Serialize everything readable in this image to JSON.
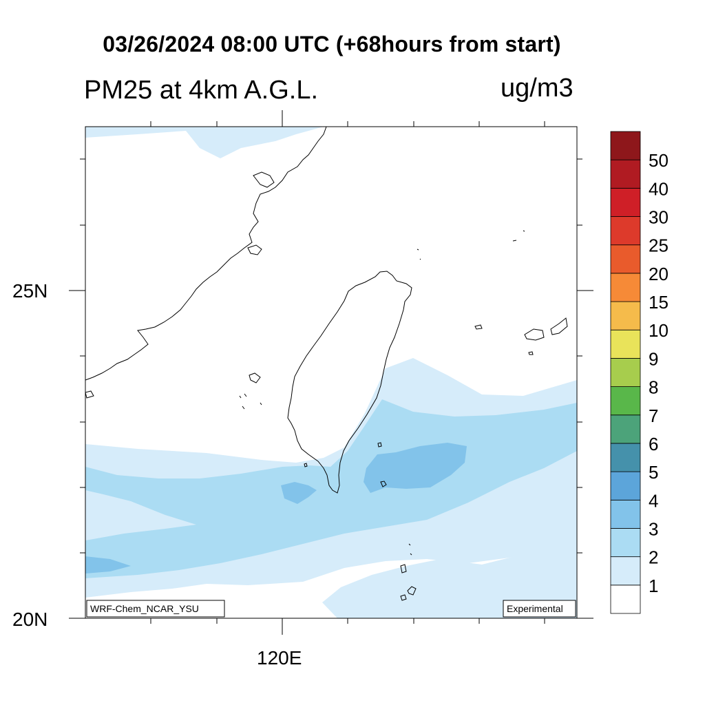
{
  "title": "03/26/2024 08:00 UTC (+68hours from start)",
  "subtitle": "PM25 at 4km A.G.L.",
  "units": "ug/m3",
  "model_tag": "WRF-Chem_NCAR_YSU",
  "status_tag": "Experimental",
  "lat_labels": [
    "25N",
    "20N"
  ],
  "lon_labels": [
    "120E"
  ],
  "colorbar": {
    "labels": [
      "1",
      "2",
      "3",
      "4",
      "5",
      "6",
      "7",
      "8",
      "9",
      "10",
      "15",
      "20",
      "25",
      "30",
      "40",
      "50"
    ],
    "colors": [
      "#ffffff",
      "#d6ecfa",
      "#abdcf3",
      "#82c3ea",
      "#5ca5da",
      "#4591ab",
      "#4ca37a",
      "#59b74a",
      "#a7cd4d",
      "#e9e35a",
      "#f5bb4b",
      "#f68a37",
      "#e95b2c",
      "#dd3a2b",
      "#cf1f27",
      "#b01b22",
      "#8e171b"
    ]
  },
  "legend": {
    "c1": "#d6ecfa",
    "c2": "#abdcf3",
    "c3": "#82c3ea",
    "c4": "#5ca5da"
  }
}
